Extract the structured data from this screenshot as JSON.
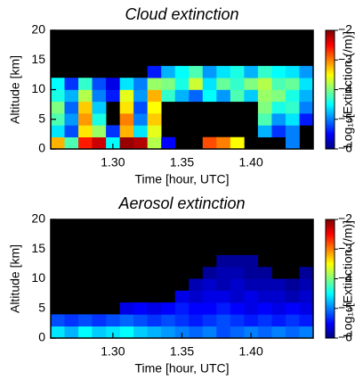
{
  "chart_data": [
    {
      "type": "heatmap",
      "title": "Cloud extinction",
      "x_label": "Time [hour, UTC]",
      "y_label": "Altitude [km]",
      "colorbar_label": "Log₁₀[Extinction (/m)]",
      "x": [
        1.255,
        1.265,
        1.275,
        1.285,
        1.295,
        1.305,
        1.315,
        1.325,
        1.335,
        1.345,
        1.355,
        1.365,
        1.375,
        1.385,
        1.395,
        1.405,
        1.415,
        1.425,
        1.435,
        1.445
      ],
      "y": [
        0,
        2,
        4,
        6,
        8,
        10,
        12,
        14,
        16,
        18,
        20
      ],
      "z": [
        [
          -3.2,
          -4.2,
          -2.6,
          -2.3,
          -4.5,
          -2.1,
          -2.2,
          -3.8,
          -5.5,
          null,
          null,
          -2.8,
          -3.0,
          -3.5,
          null,
          null,
          null,
          -5,
          null
        ],
        [
          -4.6,
          -5.2,
          -3.4,
          -3.9,
          -5.3,
          -3.2,
          -4.6,
          -3.6,
          null,
          null,
          null,
          null,
          null,
          null,
          null,
          -4.8,
          -5.3,
          -5,
          null
        ],
        [
          -4.2,
          -4.9,
          -3.1,
          -4.4,
          null,
          -3.0,
          -5.0,
          -3.3,
          null,
          null,
          null,
          null,
          null,
          null,
          null,
          -4.2,
          -4.9,
          -4.6,
          -5.4
        ],
        [
          -4.0,
          -5.1,
          -3.3,
          -4.7,
          null,
          -3.4,
          -5.2,
          -3.5,
          null,
          null,
          null,
          null,
          null,
          null,
          null,
          -4.0,
          -4.4,
          -4.3,
          -5.0
        ],
        [
          -4.4,
          -4.8,
          -3.8,
          -5.0,
          -5.4,
          -3.6,
          -4.9,
          -3.2,
          -4.3,
          -4.8,
          -5.1,
          -4.5,
          -4.9,
          -4.2,
          -4.7,
          -3.9,
          -4.0,
          -4.4,
          -4.8
        ],
        [
          -4.5,
          -5.3,
          -4.3,
          -5.2,
          -5.6,
          -4.6,
          -5.0,
          -3.9,
          -4.0,
          -4.4,
          -3.7,
          -4.6,
          -4.1,
          -4.3,
          -4.0,
          -3.8,
          -4.2,
          -4.1,
          -4.6
        ],
        [
          null,
          null,
          null,
          null,
          null,
          null,
          null,
          -5.4,
          -4.8,
          -4.5,
          -4.2,
          -4.9,
          -4.6,
          -4.4,
          -4.8,
          -4.3,
          -4.5,
          -4.6,
          -4.9
        ],
        [
          null,
          null,
          null,
          null,
          null,
          null,
          null,
          null,
          null,
          null,
          null,
          null,
          null,
          null,
          null,
          null,
          null,
          null,
          null
        ],
        [
          null,
          null,
          null,
          null,
          null,
          null,
          null,
          null,
          null,
          null,
          null,
          null,
          null,
          null,
          null,
          null,
          null,
          null,
          null
        ],
        [
          null,
          null,
          null,
          null,
          null,
          null,
          null,
          null,
          null,
          null,
          null,
          null,
          null,
          null,
          null,
          null,
          null,
          null,
          null
        ]
      ],
      "xlim": [
        1.255,
        1.445
      ],
      "ylim": [
        0,
        20
      ],
      "xticks": [
        {
          "value": 1.3,
          "label": "1.30"
        },
        {
          "value": 1.35,
          "label": "1.35"
        },
        {
          "value": 1.4,
          "label": "1.40"
        }
      ],
      "yticks": [
        0,
        5,
        10,
        15,
        20
      ],
      "clim": [
        -6,
        -2
      ],
      "cticks": [
        {
          "value": -6,
          "label": "−6"
        },
        {
          "value": -5,
          "label": "−5"
        },
        {
          "value": -4,
          "label": "−4"
        },
        {
          "value": -3,
          "label": "−3"
        },
        {
          "value": -2,
          "label": "−2"
        }
      ]
    },
    {
      "type": "heatmap",
      "title": "Aerosol extinction",
      "x_label": "Time [hour, UTC]",
      "y_label": "Altitude [km]",
      "colorbar_label": "Log₁₀[Extinction (/m)]",
      "x": [
        1.255,
        1.265,
        1.275,
        1.285,
        1.295,
        1.305,
        1.315,
        1.325,
        1.335,
        1.345,
        1.355,
        1.365,
        1.375,
        1.385,
        1.395,
        1.405,
        1.415,
        1.425,
        1.435,
        1.445
      ],
      "y": [
        0,
        2,
        4,
        6,
        8,
        10,
        12,
        14,
        16,
        18,
        20
      ],
      "z": [
        [
          -4.6,
          -4.8,
          -4.5,
          -4.7,
          -4.6,
          -4.5,
          -4.7,
          -4.8,
          -4.9,
          -5.0,
          -5.1,
          -5.0,
          -5.2,
          -5.1,
          -5.0,
          -5.1,
          -5.0,
          -5.1,
          -5.0
        ],
        [
          -5.2,
          -5.3,
          -5.2,
          -5.3,
          -5.2,
          -5.1,
          -5.2,
          -5.3,
          -5.2,
          -5.3,
          -5.4,
          -5.3,
          -5.2,
          -5.3,
          -5.4,
          -5.3,
          -5.4,
          -5.3,
          -5.4
        ],
        [
          null,
          null,
          null,
          null,
          null,
          -5.6,
          -5.5,
          -5.6,
          -5.5,
          -5.4,
          -5.5,
          -5.5,
          -5.4,
          -5.5,
          -5.6,
          -5.5,
          -5.6,
          -5.5,
          -5.6
        ],
        [
          null,
          null,
          null,
          null,
          null,
          null,
          null,
          null,
          null,
          -5.6,
          -5.7,
          -5.6,
          -5.6,
          -5.7,
          -5.6,
          -5.7,
          -5.7,
          -5.8,
          -5.7
        ],
        [
          null,
          null,
          null,
          null,
          null,
          null,
          null,
          null,
          null,
          null,
          -5.8,
          -5.7,
          -5.8,
          -5.7,
          -5.8,
          -5.8,
          -5.8,
          -5.9,
          -5.8
        ],
        [
          null,
          null,
          null,
          null,
          null,
          null,
          null,
          null,
          null,
          null,
          null,
          -5.9,
          -5.8,
          -5.8,
          -5.9,
          -5.9,
          null,
          null,
          -5.9
        ],
        [
          null,
          null,
          null,
          null,
          null,
          null,
          null,
          null,
          null,
          null,
          null,
          null,
          -5.9,
          -5.9,
          -5.9,
          null,
          null,
          null,
          null
        ],
        [
          null,
          null,
          null,
          null,
          null,
          null,
          null,
          null,
          null,
          null,
          null,
          null,
          null,
          null,
          null,
          null,
          null,
          null,
          null
        ],
        [
          null,
          null,
          null,
          null,
          null,
          null,
          null,
          null,
          null,
          null,
          null,
          null,
          null,
          null,
          null,
          null,
          null,
          null,
          null
        ],
        [
          null,
          null,
          null,
          null,
          null,
          null,
          null,
          null,
          null,
          null,
          null,
          null,
          null,
          null,
          null,
          null,
          null,
          null,
          null
        ]
      ],
      "xlim": [
        1.255,
        1.445
      ],
      "ylim": [
        0,
        20
      ],
      "xticks": [
        {
          "value": 1.3,
          "label": "1.30"
        },
        {
          "value": 1.35,
          "label": "1.35"
        },
        {
          "value": 1.4,
          "label": "1.40"
        }
      ],
      "yticks": [
        0,
        5,
        10,
        15,
        20
      ],
      "clim": [
        -6,
        -2
      ],
      "cticks": [
        {
          "value": -6,
          "label": "−6"
        },
        {
          "value": -5,
          "label": "−5"
        },
        {
          "value": -4,
          "label": "−4"
        },
        {
          "value": -3,
          "label": "−3"
        },
        {
          "value": -2,
          "label": "−2"
        }
      ]
    }
  ]
}
